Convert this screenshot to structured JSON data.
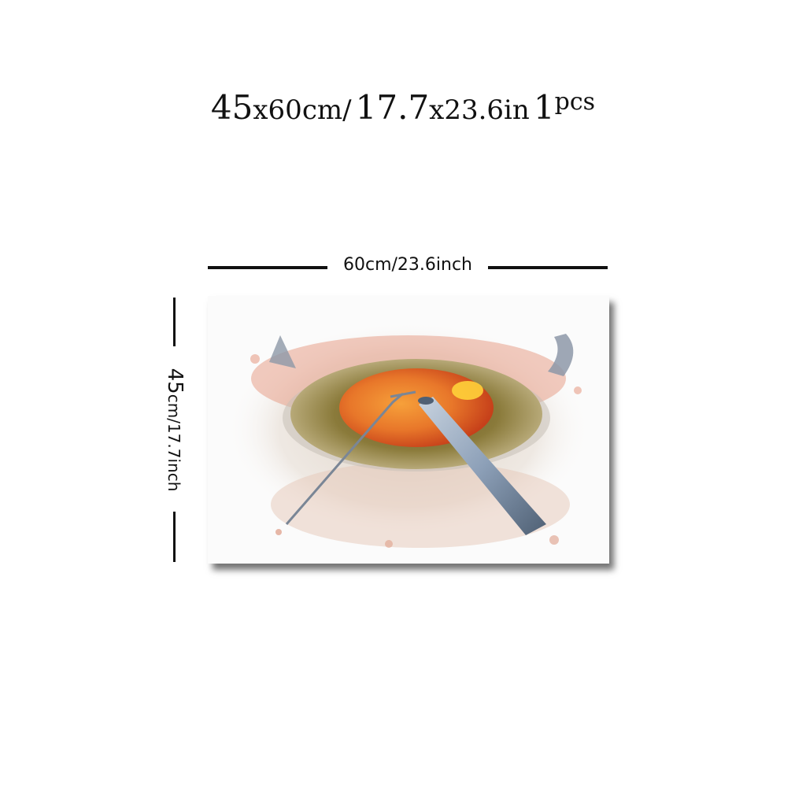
{
  "headline": {
    "part1": "45",
    "part2": "x60cm/",
    "part3": "17.7",
    "part4": "x23.6in",
    "part5": "1",
    "part6": "pcs"
  },
  "dimensions": {
    "width_label": "60cm/23.6inch",
    "height_number": "45",
    "height_unit": "cm/17.7inch"
  },
  "artwork": {
    "subject": "watercolor eye surgery painting",
    "colors": {
      "iris": "#8a7a3a",
      "pupil": "#e8772a",
      "splash": "#e8a08a",
      "instrument": "#8da0b8"
    }
  }
}
